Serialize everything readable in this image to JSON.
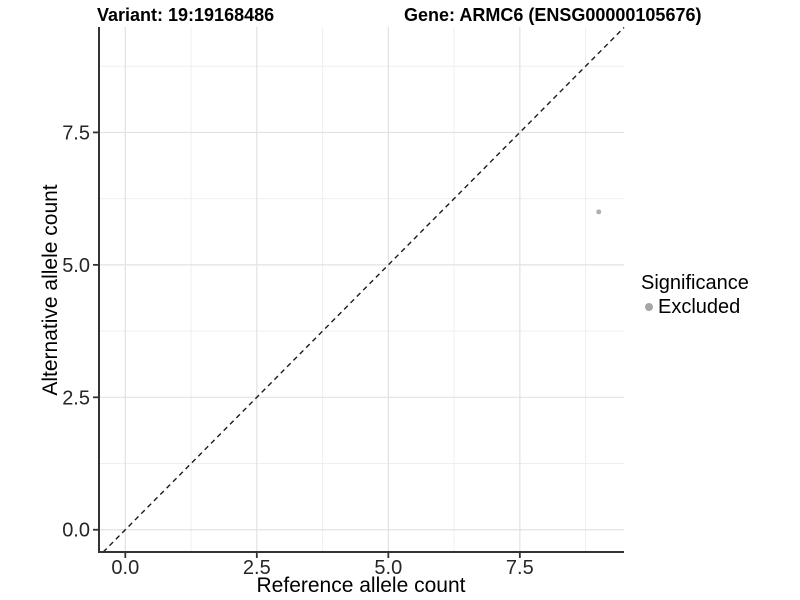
{
  "header": {
    "variant_title": "Variant: 19:19168486",
    "gene_title": "Gene: ARMC6 (ENSG00000105676)"
  },
  "chart_data": {
    "type": "scatter",
    "title": "",
    "xlabel": "Reference allele count",
    "ylabel": "Alternative allele count",
    "xlim": [
      -0.5,
      9.48
    ],
    "ylim": [
      -0.42,
      9.49
    ],
    "x_ticks": [
      0.0,
      2.5,
      5.0,
      7.5
    ],
    "y_ticks": [
      0.0,
      2.5,
      5.0,
      7.5
    ],
    "x_minor_ticks": [
      1.25,
      3.75,
      6.25,
      8.75
    ],
    "y_minor_ticks": [
      1.25,
      3.75,
      6.25,
      8.75
    ],
    "grid": "major and minor, light gray on white",
    "points": [
      {
        "x": 9,
        "y": 6,
        "series": "Excluded"
      }
    ],
    "reference_line": {
      "kind": "identity y=x",
      "style": "dashed"
    },
    "legend": {
      "title": "Significance",
      "position": "right",
      "entries": [
        {
          "label": "Excluded",
          "color": "#a6a6a6"
        }
      ]
    },
    "colors": {
      "point": "#b0b0b0",
      "grid_major": "#e2e2e2",
      "grid_minor": "#efefef",
      "axis_line": "#333333",
      "tick_label": "#262626",
      "reference_line": "#1a1a1a"
    }
  }
}
